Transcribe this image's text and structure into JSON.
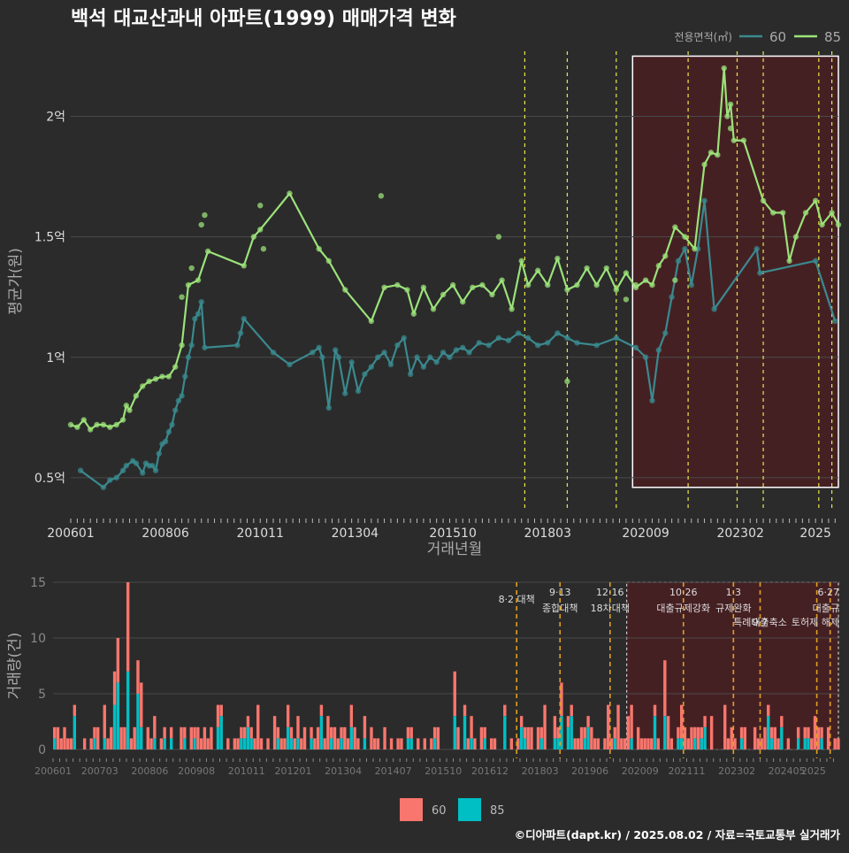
{
  "title": "백석 대교산과내 아파트(1999) 매매가격 변화",
  "credit": "©디아파트(dapt.kr) / 2025.08.02 / 자료=국토교통부 실거래가",
  "colors": {
    "background": "#2b2b2b",
    "s60_line": "#3a8a8f",
    "s85_line": "#9be27a",
    "bar60": "#f8766d",
    "bar85": "#00bfc4",
    "policy": "#e8e84a",
    "policy_bottom": "#e0a020",
    "highlight_fill": "#4a1f22",
    "grid": "#4a4a4a"
  },
  "chart_data": [
    {
      "type": "line",
      "panel": "price",
      "xlabel": "거래년월",
      "ylabel": "평균가(원)",
      "x_axis": {
        "start": "2006-01",
        "end": "2025-08",
        "ticks": [
          "200601",
          "200806",
          "201011",
          "201304",
          "201510",
          "201803",
          "202009",
          "202302",
          "2025"
        ]
      },
      "y_ticks": [
        {
          "v": 0.5,
          "label": "0.5억"
        },
        {
          "v": 1.0,
          "label": "1억"
        },
        {
          "v": 1.5,
          "label": "1.5억"
        },
        {
          "v": 2.0,
          "label": "2억"
        }
      ],
      "ylim": [
        0.36,
        2.27
      ],
      "legend": {
        "title": "전용면적(㎡)",
        "position": "top-right",
        "items": [
          "60",
          "85"
        ]
      },
      "highlight": {
        "from": "2020-05",
        "to": "2025-08",
        "ymin": 0.46,
        "ymax": 2.25
      },
      "policy_lines": [
        "2017-08",
        "2018-09",
        "2019-12",
        "2021-10",
        "2023-01",
        "2023-09",
        "2025-02",
        "2025-06"
      ],
      "series": [
        {
          "name": "60",
          "unit": "억원",
          "points": [
            [
              "2006-04",
              0.53
            ],
            [
              "2006-11",
              0.46
            ],
            [
              "2007-01",
              0.49
            ],
            [
              "2007-03",
              0.5
            ],
            [
              "2007-05",
              0.53
            ],
            [
              "2007-06",
              0.55
            ],
            [
              "2007-08",
              0.57
            ],
            [
              "2007-09",
              0.56
            ],
            [
              "2007-11",
              0.52
            ],
            [
              "2007-12",
              0.56
            ],
            [
              "2008-01",
              0.55
            ],
            [
              "2008-02",
              0.55
            ],
            [
              "2008-03",
              0.53
            ],
            [
              "2008-04",
              0.6
            ],
            [
              "2008-05",
              0.64
            ],
            [
              "2008-06",
              0.65
            ],
            [
              "2008-07",
              0.69
            ],
            [
              "2008-08",
              0.72
            ],
            [
              "2008-09",
              0.78
            ],
            [
              "2008-10",
              0.82
            ],
            [
              "2008-11",
              0.84
            ],
            [
              "2008-12",
              0.92
            ],
            [
              "2009-01",
              1.0
            ],
            [
              "2009-02",
              1.05
            ],
            [
              "2009-03",
              1.16
            ],
            [
              "2009-04",
              1.18
            ],
            [
              "2009-05",
              1.23
            ],
            [
              "2009-06",
              1.04
            ],
            [
              "2010-04",
              1.05
            ],
            [
              "2010-05",
              1.1
            ],
            [
              "2010-06",
              1.16
            ],
            [
              "2011-03",
              1.02
            ],
            [
              "2011-08",
              0.97
            ],
            [
              "2012-03",
              1.02
            ],
            [
              "2012-05",
              1.04
            ],
            [
              "2012-06",
              1.0
            ],
            [
              "2012-08",
              0.79
            ],
            [
              "2012-10",
              1.03
            ],
            [
              "2012-11",
              1.0
            ],
            [
              "2013-01",
              0.85
            ],
            [
              "2013-03",
              0.98
            ],
            [
              "2013-05",
              0.86
            ],
            [
              "2013-07",
              0.93
            ],
            [
              "2013-09",
              0.96
            ],
            [
              "2013-11",
              1.0
            ],
            [
              "2014-01",
              1.02
            ],
            [
              "2014-03",
              0.97
            ],
            [
              "2014-05",
              1.05
            ],
            [
              "2014-07",
              1.08
            ],
            [
              "2014-09",
              0.93
            ],
            [
              "2014-11",
              1.0
            ],
            [
              "2015-01",
              0.96
            ],
            [
              "2015-03",
              1.0
            ],
            [
              "2015-05",
              0.98
            ],
            [
              "2015-07",
              1.02
            ],
            [
              "2015-09",
              1.0
            ],
            [
              "2015-11",
              1.03
            ],
            [
              "2016-01",
              1.04
            ],
            [
              "2016-03",
              1.02
            ],
            [
              "2016-06",
              1.06
            ],
            [
              "2016-09",
              1.05
            ],
            [
              "2016-12",
              1.08
            ],
            [
              "2017-03",
              1.07
            ],
            [
              "2017-06",
              1.1
            ],
            [
              "2017-09",
              1.08
            ],
            [
              "2017-12",
              1.05
            ],
            [
              "2018-03",
              1.06
            ],
            [
              "2018-06",
              1.1
            ],
            [
              "2018-09",
              1.08
            ],
            [
              "2018-12",
              1.06
            ],
            [
              "2019-06",
              1.05
            ],
            [
              "2019-12",
              1.08
            ],
            [
              "2020-06",
              1.04
            ],
            [
              "2020-09",
              1.0
            ],
            [
              "2020-11",
              0.82
            ],
            [
              "2021-01",
              1.03
            ],
            [
              "2021-03",
              1.1
            ],
            [
              "2021-05",
              1.25
            ],
            [
              "2021-07",
              1.4
            ],
            [
              "2021-09",
              1.45
            ],
            [
              "2021-11",
              1.3
            ],
            [
              "2022-01",
              1.45
            ],
            [
              "2022-03",
              1.65
            ],
            [
              "2022-06",
              1.2
            ],
            [
              "2023-07",
              1.45
            ],
            [
              "2023-08",
              1.35
            ],
            [
              "2025-01",
              1.4
            ],
            [
              "2025-07",
              1.15
            ]
          ]
        },
        {
          "name": "85",
          "unit": "억원",
          "points": [
            [
              "2006-01",
              0.72
            ],
            [
              "2006-03",
              0.71
            ],
            [
              "2006-05",
              0.74
            ],
            [
              "2006-07",
              0.7
            ],
            [
              "2006-09",
              0.72
            ],
            [
              "2006-11",
              0.72
            ],
            [
              "2007-01",
              0.71
            ],
            [
              "2007-03",
              0.72
            ],
            [
              "2007-05",
              0.74
            ],
            [
              "2007-06",
              0.8
            ],
            [
              "2007-07",
              0.78
            ],
            [
              "2007-09",
              0.84
            ],
            [
              "2007-11",
              0.88
            ],
            [
              "2008-01",
              0.9
            ],
            [
              "2008-03",
              0.91
            ],
            [
              "2008-05",
              0.92
            ],
            [
              "2008-07",
              0.92
            ],
            [
              "2008-09",
              0.96
            ],
            [
              "2008-11",
              1.05
            ],
            [
              "2009-01",
              1.3
            ],
            [
              "2009-04",
              1.32
            ],
            [
              "2009-07",
              1.44
            ],
            [
              "2010-06",
              1.38
            ],
            [
              "2010-09",
              1.5
            ],
            [
              "2010-11",
              1.53
            ],
            [
              "2011-08",
              1.68
            ],
            [
              "2012-05",
              1.45
            ],
            [
              "2012-08",
              1.4
            ],
            [
              "2013-01",
              1.28
            ],
            [
              "2013-09",
              1.15
            ],
            [
              "2014-01",
              1.29
            ],
            [
              "2014-05",
              1.3
            ],
            [
              "2014-08",
              1.28
            ],
            [
              "2014-10",
              1.18
            ],
            [
              "2015-01",
              1.29
            ],
            [
              "2015-04",
              1.2
            ],
            [
              "2015-07",
              1.26
            ],
            [
              "2015-10",
              1.3
            ],
            [
              "2016-01",
              1.23
            ],
            [
              "2016-04",
              1.29
            ],
            [
              "2016-07",
              1.3
            ],
            [
              "2016-10",
              1.26
            ],
            [
              "2017-01",
              1.32
            ],
            [
              "2017-04",
              1.2
            ],
            [
              "2017-07",
              1.4
            ],
            [
              "2017-09",
              1.3
            ],
            [
              "2017-12",
              1.36
            ],
            [
              "2018-03",
              1.3
            ],
            [
              "2018-06",
              1.41
            ],
            [
              "2018-09",
              1.28
            ],
            [
              "2018-12",
              1.3
            ],
            [
              "2019-03",
              1.37
            ],
            [
              "2019-06",
              1.3
            ],
            [
              "2019-09",
              1.37
            ],
            [
              "2019-12",
              1.28
            ],
            [
              "2020-03",
              1.35
            ],
            [
              "2020-06",
              1.29
            ],
            [
              "2020-09",
              1.32
            ],
            [
              "2020-11",
              1.3
            ],
            [
              "2021-01",
              1.38
            ],
            [
              "2021-03",
              1.42
            ],
            [
              "2021-06",
              1.54
            ],
            [
              "2021-09",
              1.5
            ],
            [
              "2021-12",
              1.45
            ],
            [
              "2022-03",
              1.8
            ],
            [
              "2022-05",
              1.85
            ],
            [
              "2022-07",
              1.84
            ],
            [
              "2022-09",
              2.2
            ],
            [
              "2022-10",
              2.0
            ],
            [
              "2022-11",
              2.05
            ],
            [
              "2022-12",
              1.9
            ],
            [
              "2023-03",
              1.9
            ],
            [
              "2023-09",
              1.65
            ],
            [
              "2023-12",
              1.6
            ],
            [
              "2024-03",
              1.6
            ],
            [
              "2024-05",
              1.4
            ],
            [
              "2024-07",
              1.5
            ],
            [
              "2024-10",
              1.6
            ],
            [
              "2025-01",
              1.65
            ],
            [
              "2025-03",
              1.55
            ],
            [
              "2025-06",
              1.6
            ],
            [
              "2025-08",
              1.55
            ]
          ],
          "extra_points": [
            [
              "2008-11",
              1.25
            ],
            [
              "2009-02",
              1.37
            ],
            [
              "2009-05",
              1.55
            ],
            [
              "2009-06",
              1.59
            ],
            [
              "2010-11",
              1.63
            ],
            [
              "2010-12",
              1.45
            ],
            [
              "2013-12",
              1.67
            ],
            [
              "2018-09",
              0.9
            ],
            [
              "2016-12",
              1.5
            ],
            [
              "2020-03",
              1.24
            ],
            [
              "2020-06",
              1.3
            ],
            [
              "2021-06",
              1.32
            ],
            [
              "2022-11",
              1.95
            ]
          ]
        }
      ]
    },
    {
      "type": "bar",
      "panel": "volume",
      "ylabel": "거래량(건)",
      "x_axis": {
        "ticks": [
          "200601",
          "200703",
          "200806",
          "200908",
          "201011",
          "201201",
          "201304",
          "201407",
          "201510",
          "201612",
          "201803",
          "201906",
          "202009",
          "202111",
          "202302",
          "202405",
          "2025"
        ]
      },
      "y_ticks": [
        0,
        5,
        10,
        15
      ],
      "ylim": [
        0,
        15
      ],
      "legend": {
        "position": "bottom",
        "items": [
          "60",
          "85"
        ]
      },
      "annotations": [
        {
          "date": "2017-08",
          "label": "8·2 대책"
        },
        {
          "date": "2018-09",
          "label": "9·13"
        },
        {
          "date": "2018-09",
          "label": "종합대책"
        },
        {
          "date": "2019-12",
          "label": "12·16"
        },
        {
          "date": "2019-12",
          "label": "18차대책"
        },
        {
          "date": "2021-10",
          "label": "10·26"
        },
        {
          "date": "2021-10",
          "label": "대출규제강화"
        },
        {
          "date": "2023-01",
          "label": "1·3"
        },
        {
          "date": "2023-01",
          "label": "규제완화"
        },
        {
          "date": "2023-09",
          "label": "9·7"
        },
        {
          "date": "2023-09",
          "label": "특례대출축소"
        },
        {
          "date": "2025-02",
          "label": "토허제 해제"
        },
        {
          "date": "2025-06",
          "label": "6·27"
        },
        {
          "date": "2025-06",
          "label": "대출규"
        }
      ],
      "seed": 20250802,
      "peak_values": [
        {
          "date": "2007-11",
          "total": 15,
          "s85": 7
        },
        {
          "date": "2007-08",
          "total": 10,
          "s85": 6
        },
        {
          "date": "2008-02",
          "total": 8,
          "s85": 5
        },
        {
          "date": "2021-04",
          "total": 8,
          "s85": 3
        },
        {
          "date": "2018-09",
          "total": 6,
          "s85": 3
        },
        {
          "date": "2016-01",
          "total": 7,
          "s85": 3
        },
        {
          "date": "2008-03",
          "total": 6,
          "s85": 2
        },
        {
          "date": "2007-07",
          "total": 7,
          "s85": 4
        }
      ]
    }
  ]
}
